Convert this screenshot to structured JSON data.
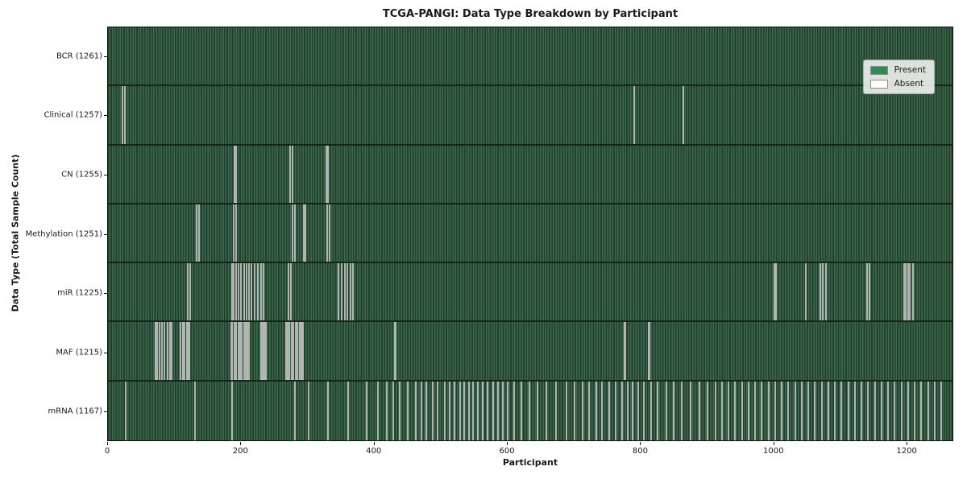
{
  "title": "TCGA-PANGI: Data Type Breakdown by Participant",
  "colors": {
    "present_green": "#2e8b57",
    "bar_stripe_dark": "#23402c",
    "bar_stripe_light": "#3d6a4e",
    "absent_line_gray": "#9ba19b",
    "row_separator": "#152619",
    "plot_border": "#0d0d0d",
    "legend_background": "#eceeec"
  },
  "chart_data": {
    "type": "heatmap",
    "title": "TCGA-PANGI: Data Type Breakdown by Participant",
    "xlabel": "Participant",
    "ylabel": "Data Type (Total Sample Count)",
    "x_ticks": [
      0,
      200,
      400,
      600,
      800,
      1000,
      1200
    ],
    "x_range": [
      0,
      1270
    ],
    "grid": false,
    "legend_position": "upper right",
    "legend_entries": [
      {
        "label": "Present",
        "color": "#2e8b57"
      },
      {
        "label": "Absent",
        "color": "#ffffff"
      }
    ],
    "rows": [
      {
        "data_type": "BCR",
        "label": "BCR (1261)",
        "total_sample_count": 1261,
        "absent_participants": []
      },
      {
        "data_type": "Clinical",
        "label": "Clinical (1257)",
        "total_sample_count": 1257,
        "absent_participants": [
          20,
          24,
          790,
          864
        ]
      },
      {
        "data_type": "CN",
        "label": "CN (1255)",
        "total_sample_count": 1255,
        "absent_participants": [
          189,
          192,
          273,
          276,
          327,
          330
        ]
      },
      {
        "data_type": "Methylation",
        "label": "Methylation (1251)",
        "total_sample_count": 1251,
        "absent_participants": [
          132,
          136,
          188,
          192,
          276,
          280,
          293,
          296,
          328,
          332
        ]
      },
      {
        "data_type": "miR",
        "label": "miR (1225)",
        "total_sample_count": 1225,
        "absent_participants": [
          119,
          122,
          185,
          188,
          191,
          195,
          199,
          203,
          207,
          211,
          215,
          219,
          224,
          229,
          233,
          270,
          274,
          345,
          350,
          355,
          359,
          363,
          367,
          1001,
          1004,
          1048,
          1070,
          1074,
          1078,
          1140,
          1144,
          1196,
          1199,
          1202,
          1205,
          1210
        ]
      },
      {
        "data_type": "MAF",
        "label": "MAF (1215)",
        "total_sample_count": 1215,
        "absent_participants": [
          70,
          73,
          76,
          80,
          84,
          88,
          92,
          95,
          108,
          111,
          114,
          117,
          119,
          121,
          184,
          186,
          189,
          192,
          195,
          198,
          200,
          203,
          205,
          207,
          209,
          211,
          229,
          231,
          234,
          236,
          266,
          269,
          272,
          275,
          278,
          281,
          284,
          287,
          290,
          292,
          430,
          432,
          775,
          777,
          812,
          813
        ]
      },
      {
        "data_type": "mRNA",
        "label": "mRNA (1167)",
        "total_sample_count": 1167,
        "absent_participants": [
          25,
          130,
          185,
          280,
          300,
          330,
          360,
          388,
          405,
          418,
          428,
          438,
          450,
          462,
          470,
          478,
          487,
          495,
          505,
          512,
          520,
          528,
          535,
          542,
          548,
          555,
          562,
          570,
          578,
          585,
          592,
          600,
          610,
          620,
          632,
          645,
          658,
          672,
          688,
          700,
          712,
          722,
          733,
          742,
          752,
          762,
          772,
          780,
          788,
          796,
          805,
          815,
          825,
          838,
          850,
          862,
          875,
          888,
          900,
          912,
          922,
          932,
          942,
          952,
          962,
          972,
          982,
          992,
          1002,
          1012,
          1022,
          1032,
          1042,
          1052,
          1062,
          1072,
          1082,
          1092,
          1102,
          1112,
          1122,
          1132,
          1142,
          1152,
          1162,
          1172,
          1182,
          1192,
          1202,
          1212,
          1222,
          1232,
          1242,
          1252
        ]
      }
    ]
  }
}
